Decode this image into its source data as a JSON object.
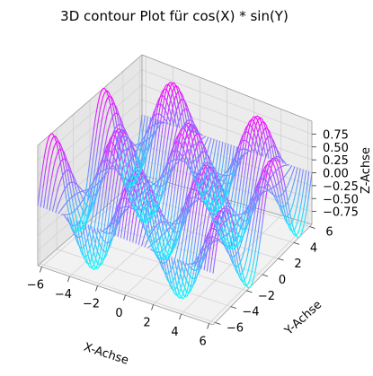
{
  "chart_data": {
    "type": "contour3d",
    "title": "3D contour Plot für cos(X) * sin(Y)",
    "function": "cos(X) * sin(Y)",
    "colormap": "cool",
    "colormap_colors": [
      "#00ffff",
      "#ff00ff"
    ],
    "xlabel": "X-Achse",
    "ylabel": "Y-Achse",
    "zlabel": "Z-Achse",
    "xlim": [
      -6.283,
      6.283
    ],
    "ylim": [
      -6.283,
      6.283
    ],
    "zlim": [
      -1,
      1
    ],
    "x_ticks": [
      -6,
      -4,
      -2,
      0,
      2,
      4,
      6
    ],
    "y_ticks": [
      -6,
      -4,
      -2,
      0,
      2,
      4,
      6
    ],
    "z_ticks": [
      -0.75,
      -0.5,
      -0.25,
      0.0,
      0.25,
      0.5,
      0.75
    ],
    "x_tick_labels": [
      "−6",
      "−4",
      "−2",
      "0",
      "2",
      "4",
      "6"
    ],
    "y_tick_labels": [
      "−6",
      "−4",
      "−2",
      "0",
      "2",
      "4",
      "6"
    ],
    "z_tick_labels": [
      "−0.75",
      "−0.50",
      "−0.25",
      "0.00",
      "0.25",
      "0.50",
      "0.75"
    ],
    "contour_lines_along": "x",
    "contour_line_count": 60,
    "samples_per_line": 80,
    "grid": true
  }
}
